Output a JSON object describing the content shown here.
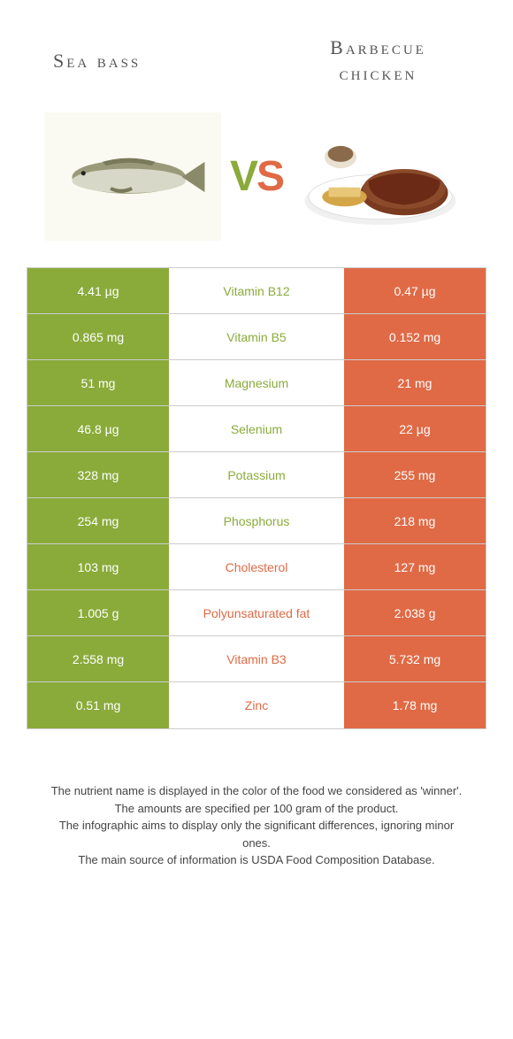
{
  "titles": {
    "left": "Sea bass",
    "right_line1": "Barbecue",
    "right_line2": "chicken"
  },
  "vs": {
    "v": "V",
    "s": "S"
  },
  "colors": {
    "green": "#8aab3a",
    "orange": "#e06a46",
    "border": "#cccccc",
    "text": "#444444"
  },
  "rows": [
    {
      "left": "4.41 µg",
      "mid": "Vitamin B12",
      "right": "0.47 µg",
      "winner": "left"
    },
    {
      "left": "0.865 mg",
      "mid": "Vitamin B5",
      "right": "0.152 mg",
      "winner": "left"
    },
    {
      "left": "51 mg",
      "mid": "Magnesium",
      "right": "21 mg",
      "winner": "left"
    },
    {
      "left": "46.8 µg",
      "mid": "Selenium",
      "right": "22 µg",
      "winner": "left"
    },
    {
      "left": "328 mg",
      "mid": "Potassium",
      "right": "255 mg",
      "winner": "left"
    },
    {
      "left": "254 mg",
      "mid": "Phosphorus",
      "right": "218 mg",
      "winner": "left"
    },
    {
      "left": "103 mg",
      "mid": "Cholesterol",
      "right": "127 mg",
      "winner": "right"
    },
    {
      "left": "1.005 g",
      "mid": "Polyunsaturated fat",
      "right": "2.038 g",
      "winner": "right"
    },
    {
      "left": "2.558 mg",
      "mid": "Vitamin B3",
      "right": "5.732 mg",
      "winner": "right"
    },
    {
      "left": "0.51 mg",
      "mid": "Zinc",
      "right": "1.78 mg",
      "winner": "right"
    }
  ],
  "footer": {
    "l1": "The nutrient name is displayed in the color of the food we considered as 'winner'.",
    "l2": "The amounts are specified per 100 gram of the product.",
    "l3": "The infographic aims to display only the significant differences, ignoring minor ones.",
    "l4": "The main source of information is USDA Food Composition Database."
  }
}
